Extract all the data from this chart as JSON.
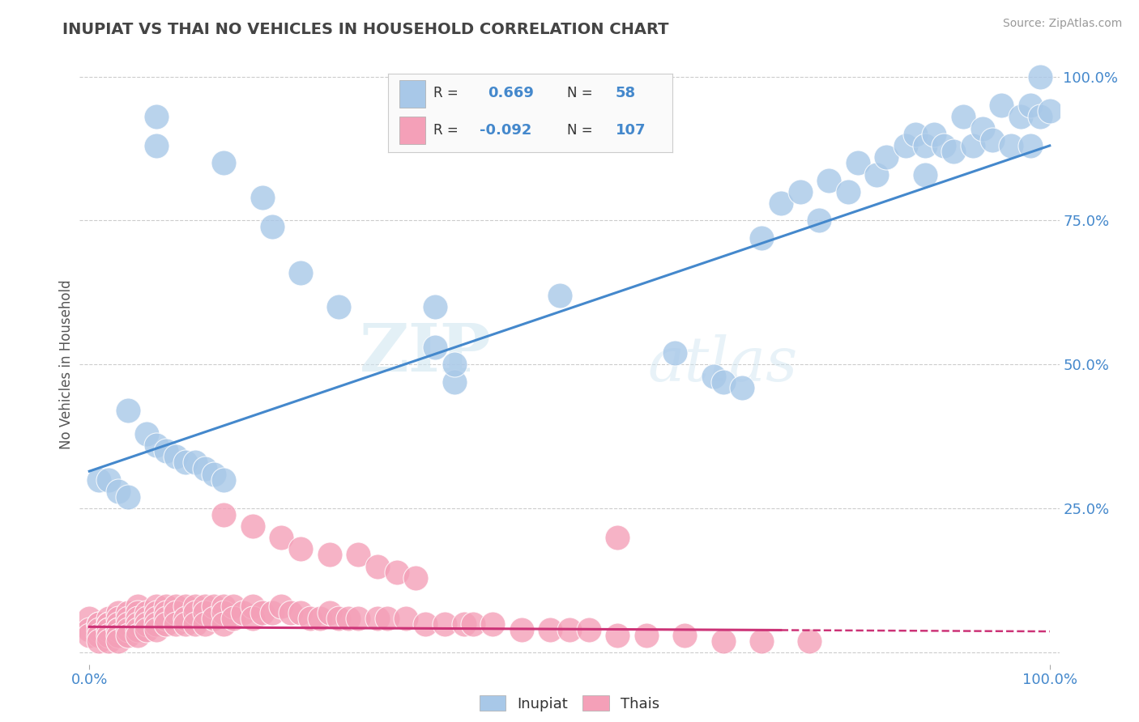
{
  "title": "INUPIAT VS THAI NO VEHICLES IN HOUSEHOLD CORRELATION CHART",
  "source": "Source: ZipAtlas.com",
  "ylabel": "No Vehicles in Household",
  "inupiat_R": 0.669,
  "inupiat_N": 58,
  "thai_R": -0.092,
  "thai_N": 107,
  "inupiat_color": "#a8c8e8",
  "thai_color": "#f4a0b8",
  "inupiat_line_color": "#4488cc",
  "thai_line_color": "#cc3377",
  "watermark_zip": "ZIP",
  "watermark_atlas": "atlas",
  "background_color": "#ffffff",
  "grid_color": "#cccccc",
  "title_color": "#444444",
  "tick_color": "#4488cc",
  "legend_text_color": "#4488cc",
  "legend_label_color": "#333333",
  "inupiat_x": [
    0.07,
    0.07,
    0.14,
    0.18,
    0.19,
    0.22,
    0.26,
    0.36,
    0.36,
    0.38,
    0.04,
    0.06,
    0.07,
    0.08,
    0.09,
    0.1,
    0.11,
    0.12,
    0.13,
    0.14,
    0.01,
    0.02,
    0.03,
    0.04,
    0.38,
    0.49,
    0.61,
    0.65,
    0.66,
    0.68,
    0.7,
    0.72,
    0.74,
    0.76,
    0.77,
    0.79,
    0.8,
    0.82,
    0.83,
    0.85,
    0.86,
    0.87,
    0.87,
    0.88,
    0.89,
    0.9,
    0.91,
    0.92,
    0.93,
    0.94,
    0.95,
    0.96,
    0.97,
    0.98,
    0.98,
    0.99,
    0.99,
    1.0
  ],
  "inupiat_y": [
    0.93,
    0.88,
    0.85,
    0.79,
    0.74,
    0.66,
    0.6,
    0.6,
    0.53,
    0.47,
    0.42,
    0.38,
    0.36,
    0.35,
    0.34,
    0.33,
    0.33,
    0.32,
    0.31,
    0.3,
    0.3,
    0.3,
    0.28,
    0.27,
    0.5,
    0.62,
    0.52,
    0.48,
    0.47,
    0.46,
    0.72,
    0.78,
    0.8,
    0.75,
    0.82,
    0.8,
    0.85,
    0.83,
    0.86,
    0.88,
    0.9,
    0.88,
    0.83,
    0.9,
    0.88,
    0.87,
    0.93,
    0.88,
    0.91,
    0.89,
    0.95,
    0.88,
    0.93,
    0.95,
    0.88,
    1.0,
    0.93,
    0.94
  ],
  "thai_x": [
    0.0,
    0.0,
    0.0,
    0.01,
    0.01,
    0.01,
    0.01,
    0.01,
    0.02,
    0.02,
    0.02,
    0.02,
    0.02,
    0.02,
    0.02,
    0.03,
    0.03,
    0.03,
    0.03,
    0.03,
    0.03,
    0.03,
    0.04,
    0.04,
    0.04,
    0.04,
    0.04,
    0.05,
    0.05,
    0.05,
    0.05,
    0.05,
    0.05,
    0.06,
    0.06,
    0.06,
    0.06,
    0.07,
    0.07,
    0.07,
    0.07,
    0.07,
    0.08,
    0.08,
    0.08,
    0.08,
    0.09,
    0.09,
    0.09,
    0.1,
    0.1,
    0.1,
    0.11,
    0.11,
    0.11,
    0.12,
    0.12,
    0.12,
    0.13,
    0.13,
    0.14,
    0.14,
    0.14,
    0.15,
    0.15,
    0.16,
    0.17,
    0.17,
    0.18,
    0.19,
    0.2,
    0.21,
    0.22,
    0.23,
    0.24,
    0.25,
    0.26,
    0.27,
    0.28,
    0.3,
    0.31,
    0.33,
    0.35,
    0.37,
    0.39,
    0.4,
    0.42,
    0.45,
    0.48,
    0.5,
    0.52,
    0.55,
    0.58,
    0.62,
    0.66,
    0.7,
    0.75,
    0.55,
    0.28,
    0.3,
    0.32,
    0.34,
    0.14,
    0.17,
    0.2,
    0.22,
    0.25
  ],
  "thai_y": [
    0.06,
    0.04,
    0.03,
    0.05,
    0.05,
    0.04,
    0.03,
    0.02,
    0.06,
    0.05,
    0.05,
    0.04,
    0.04,
    0.03,
    0.02,
    0.07,
    0.06,
    0.05,
    0.04,
    0.04,
    0.03,
    0.02,
    0.07,
    0.06,
    0.05,
    0.04,
    0.03,
    0.08,
    0.07,
    0.06,
    0.05,
    0.04,
    0.03,
    0.07,
    0.06,
    0.05,
    0.04,
    0.08,
    0.07,
    0.06,
    0.05,
    0.04,
    0.08,
    0.07,
    0.06,
    0.05,
    0.08,
    0.07,
    0.05,
    0.08,
    0.06,
    0.05,
    0.08,
    0.07,
    0.05,
    0.08,
    0.07,
    0.05,
    0.08,
    0.06,
    0.08,
    0.07,
    0.05,
    0.08,
    0.06,
    0.07,
    0.08,
    0.06,
    0.07,
    0.07,
    0.08,
    0.07,
    0.07,
    0.06,
    0.06,
    0.07,
    0.06,
    0.06,
    0.06,
    0.06,
    0.06,
    0.06,
    0.05,
    0.05,
    0.05,
    0.05,
    0.05,
    0.04,
    0.04,
    0.04,
    0.04,
    0.03,
    0.03,
    0.03,
    0.02,
    0.02,
    0.02,
    0.2,
    0.17,
    0.15,
    0.14,
    0.13,
    0.24,
    0.22,
    0.2,
    0.18,
    0.17
  ],
  "ytick_labels": [
    "",
    "25.0%",
    "50.0%",
    "75.0%",
    "100.0%"
  ],
  "ytick_vals": [
    0.0,
    0.25,
    0.5,
    0.75,
    1.0
  ]
}
